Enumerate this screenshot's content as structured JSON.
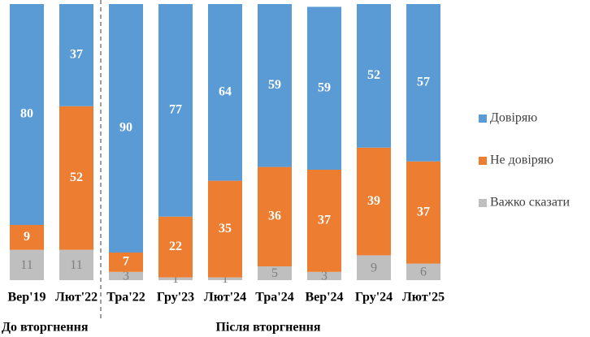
{
  "chart_data": {
    "type": "stacked_bar",
    "categories": [
      "Вер'19",
      "Лют'22",
      "Тра'22",
      "Гру'23",
      "Лют'24",
      "Тра'24",
      "Вер'24",
      "Гру'24",
      "Лют'25"
    ],
    "series": [
      {
        "name": "Довіряю",
        "color": "#5b9bd5",
        "values": [
          80,
          37,
          90,
          77,
          64,
          59,
          59,
          52,
          57
        ]
      },
      {
        "name": "Не довіряю",
        "color": "#ed7d31",
        "values": [
          9,
          52,
          7,
          22,
          35,
          36,
          37,
          39,
          37
        ]
      },
      {
        "name": "Важко сказати",
        "color": "#bfbfbf",
        "values": [
          11,
          11,
          3,
          1,
          1,
          5,
          3,
          9,
          6
        ]
      }
    ],
    "annotations": [
      "До вторгнення",
      "Після вторгнення"
    ]
  }
}
